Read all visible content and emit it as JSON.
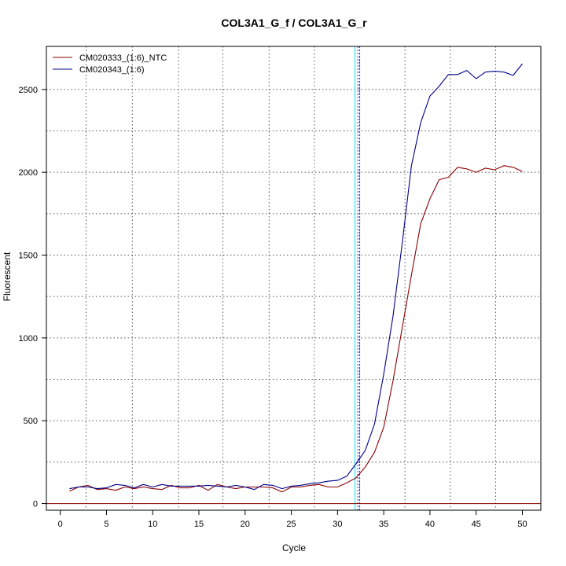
{
  "chart_data": {
    "type": "line",
    "title": "COL3A1_G_f / COL3A1_G_r",
    "xlabel": "Cycle",
    "ylabel": "Fluorescent",
    "xlim": [
      -1.5,
      52
    ],
    "ylim": [
      -40,
      2760
    ],
    "x_ticks": [
      0,
      5,
      10,
      15,
      20,
      25,
      30,
      35,
      40,
      45,
      50
    ],
    "y_ticks": [
      0,
      500,
      1000,
      1500,
      2000,
      2500
    ],
    "grid": true,
    "grid_x": [
      2.8,
      7.8,
      12.8,
      17.6,
      22.6,
      27.5,
      32.4,
      37.3,
      42.2,
      47.1
    ],
    "grid_y": [
      250,
      500,
      750,
      1000,
      1250,
      1500,
      1750,
      2000,
      2250,
      2500
    ],
    "grid_style": "dotted",
    "legend_position": "top-left",
    "threshold": {
      "y": 0,
      "color": "#8b0000"
    },
    "vlines": [
      {
        "x": 31.9,
        "color": "#00e5ee",
        "style": "solid"
      },
      {
        "x": 32.2,
        "color": "#1e3cff",
        "style": "dotted"
      },
      {
        "x": 32.4,
        "color": "#c80000",
        "style": "dotted"
      }
    ],
    "x": [
      1,
      2,
      3,
      4,
      5,
      6,
      7,
      8,
      9,
      10,
      11,
      12,
      13,
      14,
      15,
      16,
      17,
      18,
      19,
      20,
      21,
      22,
      23,
      24,
      25,
      26,
      27,
      28,
      29,
      30,
      31,
      32,
      33,
      34,
      35,
      36,
      37,
      38,
      39,
      40,
      41,
      42,
      43,
      44,
      45,
      46,
      47,
      48,
      49,
      50
    ],
    "series": [
      {
        "name": "CM020333_(1:6)_NTC",
        "color": "#8b0000",
        "values": [
          75,
          100,
          110,
          85,
          90,
          80,
          100,
          90,
          100,
          90,
          85,
          110,
          95,
          95,
          110,
          80,
          115,
          100,
          90,
          100,
          100,
          100,
          95,
          70,
          100,
          100,
          110,
          115,
          100,
          100,
          125,
          155,
          220,
          310,
          460,
          740,
          1060,
          1380,
          1690,
          1840,
          1955,
          1970,
          2030,
          2020,
          2000,
          2025,
          2015,
          2040,
          2030,
          2005
        ]
      },
      {
        "name": "CM020343_(1:6)",
        "color": "#00008b",
        "values": [
          90,
          100,
          100,
          90,
          95,
          115,
          110,
          95,
          115,
          100,
          115,
          105,
          105,
          105,
          105,
          110,
          105,
          100,
          110,
          100,
          85,
          115,
          110,
          90,
          105,
          110,
          120,
          125,
          135,
          140,
          165,
          240,
          320,
          480,
          780,
          1130,
          1570,
          2040,
          2300,
          2460,
          2520,
          2590,
          2590,
          2615,
          2565,
          2605,
          2610,
          2605,
          2585,
          2655
        ]
      }
    ]
  }
}
